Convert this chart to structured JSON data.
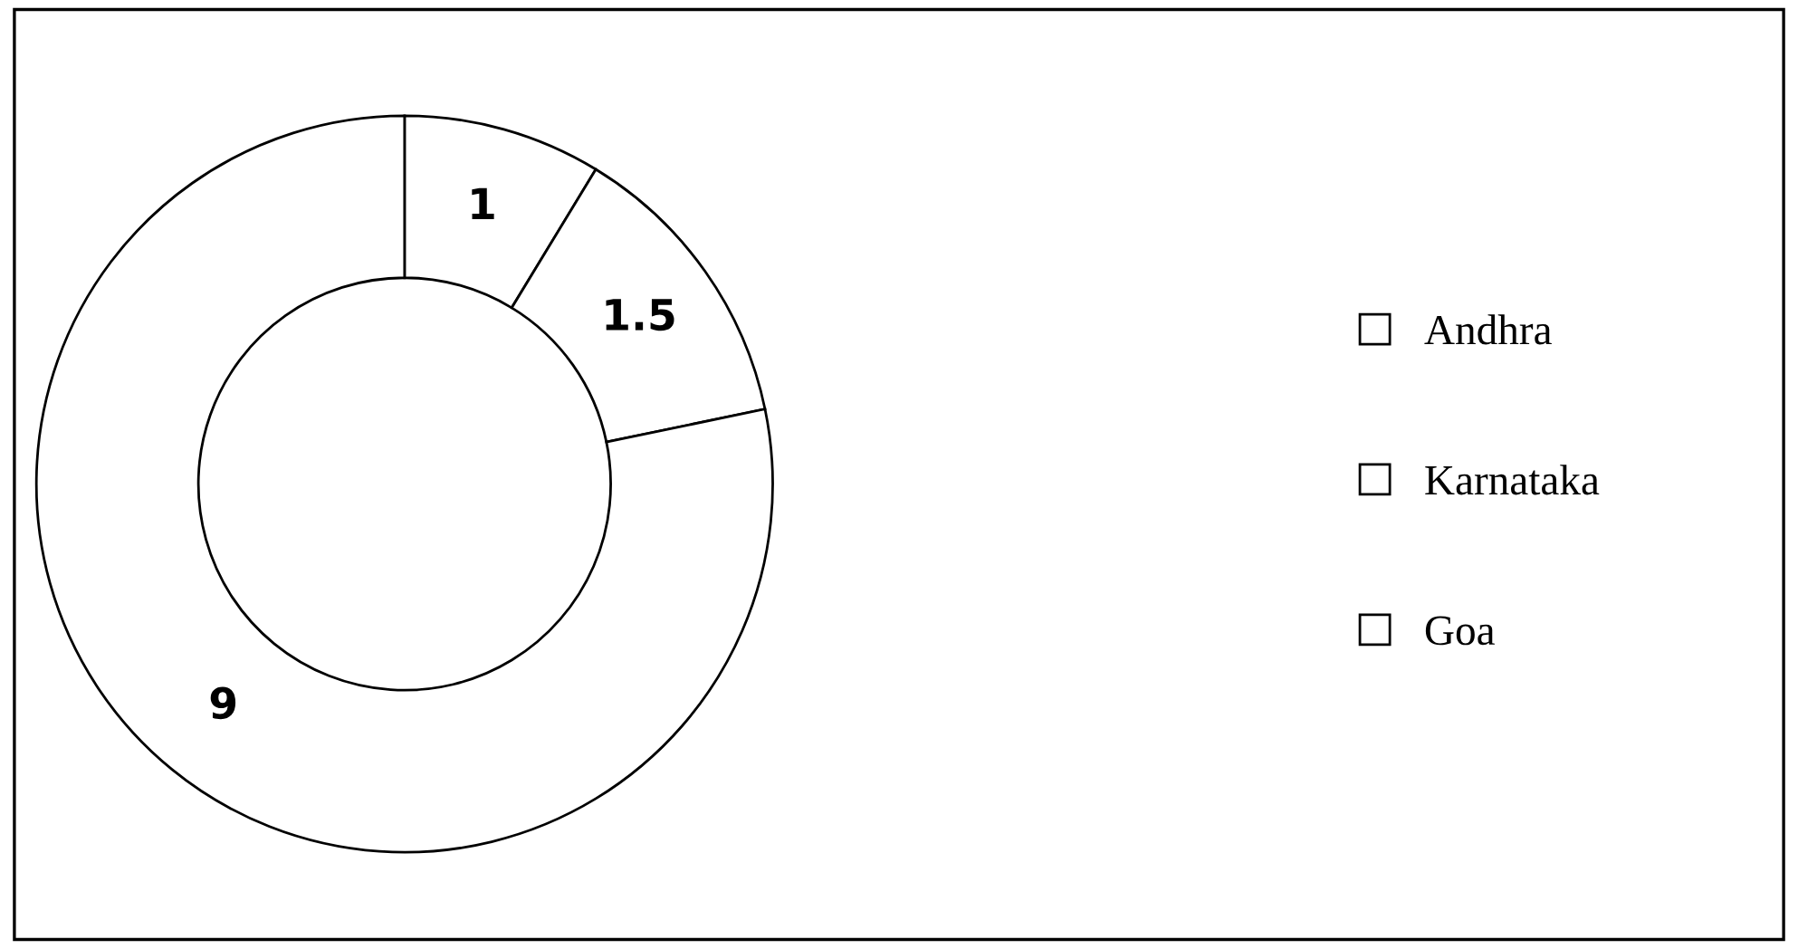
{
  "chart_data": {
    "type": "donut",
    "categories": [
      "Andhra",
      "Karnataka",
      "Goa"
    ],
    "values": [
      1,
      1.5,
      9
    ],
    "colors": [
      "#ffffff",
      "#ffffff",
      "#ffffff"
    ],
    "data_labels": true,
    "legend": "right"
  }
}
